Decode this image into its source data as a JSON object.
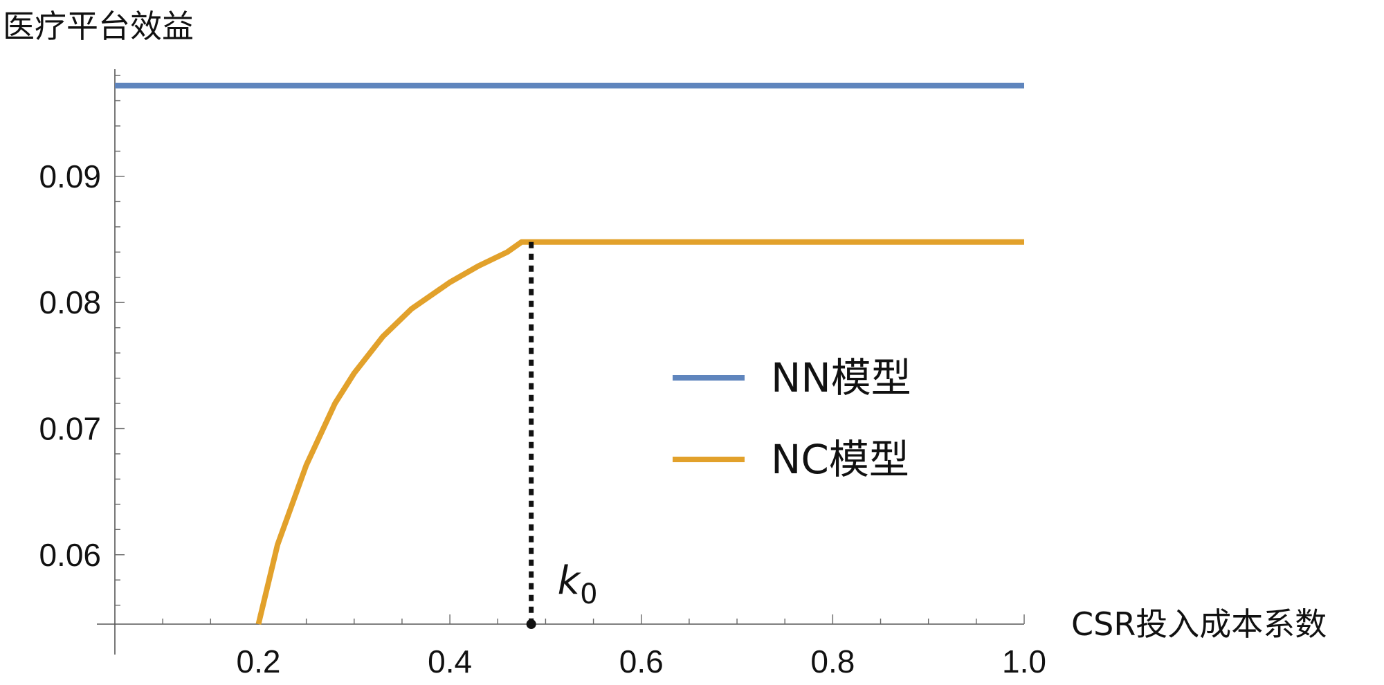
{
  "chart_data": {
    "type": "line",
    "title": "",
    "ylabel": "医疗平台效益",
    "xlabel": "CSR投入成本系数",
    "xlim": [
      0.05,
      1.0
    ],
    "ylim": [
      0.0545,
      0.0985
    ],
    "x_ticks": [
      "0.2",
      "0.4",
      "0.6",
      "0.8",
      "1.0"
    ],
    "x_tick_values": [
      0.2,
      0.4,
      0.6,
      0.8,
      1.0
    ],
    "y_ticks": [
      "0.06",
      "0.07",
      "0.08",
      "0.09"
    ],
    "y_tick_values": [
      0.06,
      0.07,
      0.08,
      0.09
    ],
    "grid": false,
    "legend_position": "center-right",
    "series": [
      {
        "name": "NN模型",
        "color": "#5f85bd",
        "x": [
          0.05,
          1.0
        ],
        "y": [
          0.0972,
          0.0972
        ]
      },
      {
        "name": "NC模型",
        "color": "#e2a12b",
        "x": [
          0.2,
          0.22,
          0.25,
          0.28,
          0.3,
          0.33,
          0.36,
          0.4,
          0.43,
          0.46,
          0.475,
          0.5,
          0.6,
          0.7,
          0.8,
          0.9,
          1.0
        ],
        "y": [
          0.0545,
          0.0608,
          0.0671,
          0.072,
          0.0744,
          0.0773,
          0.0795,
          0.0816,
          0.0829,
          0.084,
          0.0848,
          0.0848,
          0.0848,
          0.0848,
          0.0848,
          0.0848,
          0.0848
        ]
      }
    ],
    "annotations": [
      {
        "label_base": "k",
        "label_sub": "0",
        "x": 0.485,
        "y_from": 0.0848,
        "y_to": 0.0545,
        "style": "dotted",
        "color": "#111111"
      }
    ]
  }
}
